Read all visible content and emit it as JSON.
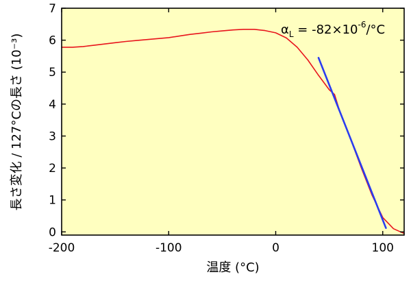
{
  "chart_data": {
    "type": "line",
    "title": "",
    "xlabel": "温度 (°C)",
    "ylabel": "長さ変化 / 127°Cの長さ (10⁻³)",
    "xlim": [
      -200,
      120
    ],
    "ylim": [
      -0.1,
      7
    ],
    "x_ticks": [
      -200,
      -100,
      0,
      100
    ],
    "y_ticks": [
      0,
      1,
      2,
      3,
      4,
      5,
      6,
      7
    ],
    "grid": false,
    "background_color": "#ffffc0",
    "annotation": {
      "symbol": "α",
      "subscript": "L",
      "text_main": " = -82×10",
      "exponent": "-6",
      "unit": "/°C"
    },
    "series": [
      {
        "color": "#e8141c",
        "x": [
          -200,
          -190,
          -180,
          -170,
          -160,
          -150,
          -140,
          -130,
          -120,
          -110,
          -100,
          -90,
          -80,
          -70,
          -60,
          -50,
          -40,
          -30,
          -20,
          -10,
          0,
          10,
          20,
          30,
          40,
          50,
          55,
          60,
          70,
          80,
          90,
          100,
          110,
          120
        ],
        "y": [
          5.78,
          5.78,
          5.8,
          5.84,
          5.88,
          5.92,
          5.96,
          5.99,
          6.02,
          6.05,
          6.08,
          6.13,
          6.18,
          6.22,
          6.26,
          6.29,
          6.32,
          6.34,
          6.34,
          6.3,
          6.23,
          6.07,
          5.78,
          5.38,
          4.9,
          4.45,
          4.3,
          3.75,
          2.9,
          2.0,
          1.15,
          0.45,
          0.1,
          -0.05
        ]
      },
      {
        "color": "#2a3cf0",
        "x": [
          40,
          103
        ],
        "y": [
          5.45,
          0.12
        ]
      }
    ]
  }
}
